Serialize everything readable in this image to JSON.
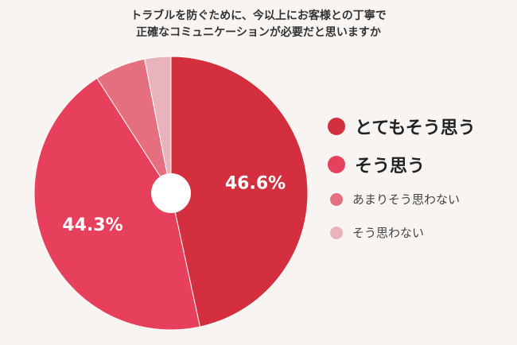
{
  "chart_data": {
    "type": "pie",
    "title_lines": [
      "トラブルを防ぐために、今以上にお客様との丁寧で",
      "正確なコミュニケーションが必要だと思いますか"
    ],
    "categories": [
      "とてもそう思う",
      "そう思う",
      "あまりそう思わない",
      "そう思わない"
    ],
    "values": [
      46.6,
      44.3,
      6.0,
      3.1
    ],
    "data_labels": [
      "46.6%",
      "44.3%",
      "",
      ""
    ],
    "colors": [
      "#d42f3e",
      "#e6405d",
      "#e56f7e",
      "#e8b3bd"
    ],
    "legend_position": "right",
    "donut_hole": true
  }
}
